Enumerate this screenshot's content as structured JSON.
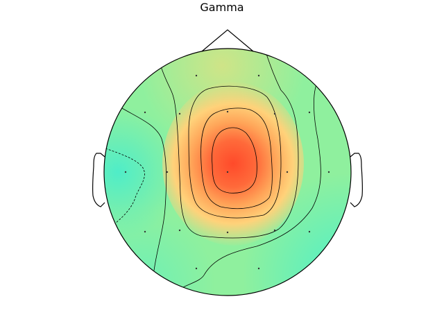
{
  "title": "Gamma",
  "colors": {
    "low": "#4fedc8",
    "mid_low": "#8ff09e",
    "mid": "#c9e48a",
    "high_mid": "#ffb25e",
    "high": "#ff4a2a",
    "outline": "#000000"
  },
  "icons": {
    "head": "head-outline-icon",
    "nose": "nose-icon",
    "ears": "ear-icon"
  }
}
